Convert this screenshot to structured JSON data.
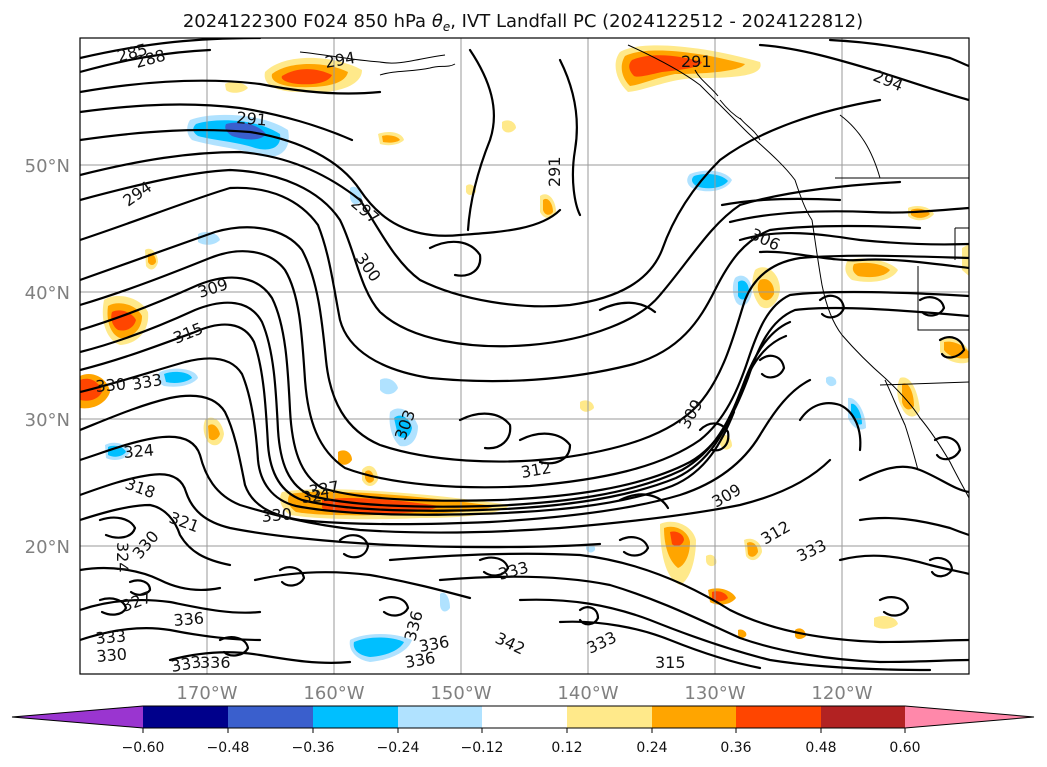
{
  "title_prefix": "2024122300 F024 850 hPa ",
  "title_symbol": "θ",
  "title_subscript": "e",
  "title_suffix": ", IVT Landfall PC (2024122512 - 2024122812)",
  "lat_labels": [
    "50°N",
    "40°N",
    "30°N",
    "20°N"
  ],
  "lon_labels": [
    "170°W",
    "160°W",
    "150°W",
    "140°W",
    "130°W",
    "120°W"
  ],
  "colorbar": {
    "tick_labels": [
      "−0.60",
      "−0.48",
      "−0.36",
      "−0.24",
      "−0.12",
      "0.12",
      "0.24",
      "0.36",
      "0.48",
      "0.60"
    ],
    "colors": [
      "#9a35d0",
      "#00008b",
      "#3a5fcd",
      "#00bfff",
      "#b0e2ff",
      "#ffffff",
      "#ffe98a",
      "#ffa500",
      "#ff4500",
      "#b22222",
      "#ff88aa"
    ]
  },
  "contour_labels": [
    "285",
    "288",
    "294",
    "291",
    "294",
    "291",
    "294",
    "297",
    "300",
    "291",
    "306",
    "309",
    "315",
    "330",
    "333",
    "303",
    "324",
    "318",
    "321",
    "321",
    "327",
    "312",
    "330",
    "309",
    "309",
    "312",
    "333",
    "324",
    "333",
    "330",
    "327",
    "333",
    "336",
    "330",
    "336",
    "333",
    "336",
    "342",
    "336",
    "336",
    "333",
    "315"
  ]
}
